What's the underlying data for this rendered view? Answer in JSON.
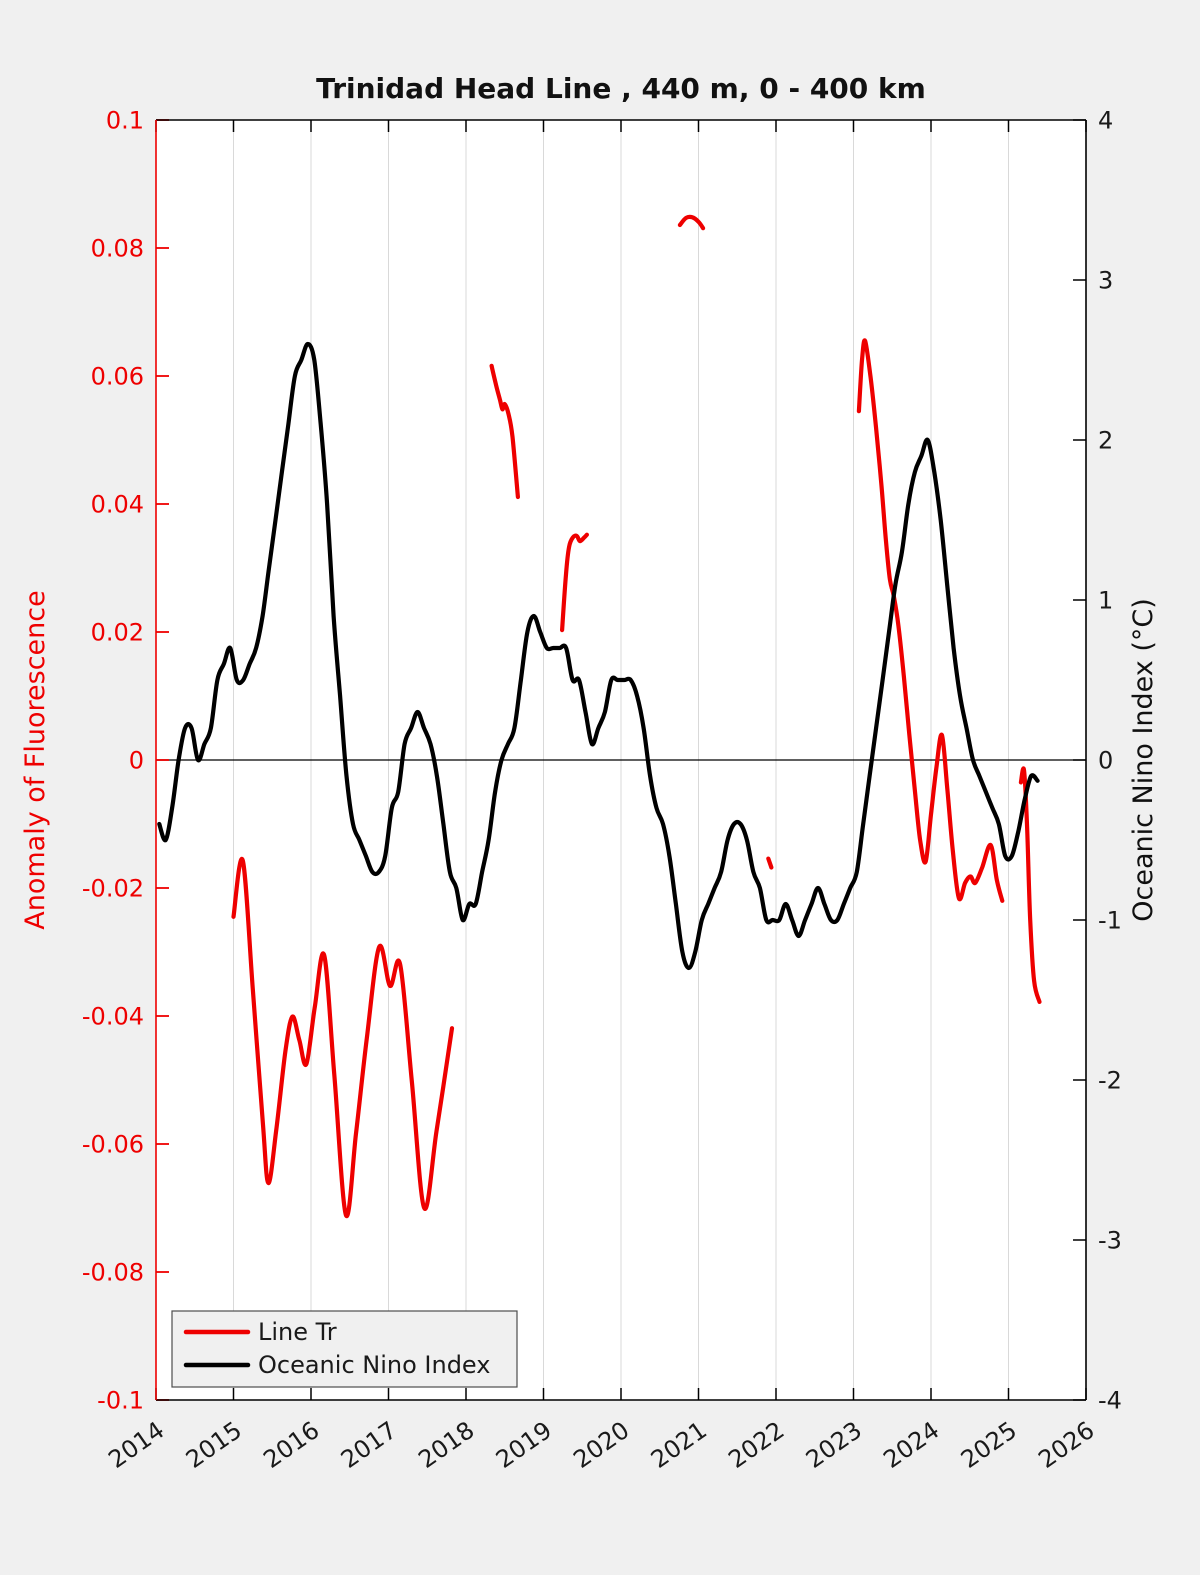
{
  "chart_data": {
    "type": "line",
    "title": "Trinidad Head Line , 440 m, 0 - 400 km",
    "grid": "vertical",
    "grid_color": "#d9d9d9",
    "background_color": "#f0f0f0",
    "plot_background_color": "#ffffff",
    "zero_line": true,
    "x_axis": {
      "label": "",
      "range": [
        2014,
        2026
      ],
      "ticks": [
        2014,
        2015,
        2016,
        2017,
        2018,
        2019,
        2020,
        2021,
        2022,
        2023,
        2024,
        2025,
        2026
      ],
      "tick_labels": [
        "2014",
        "2015",
        "2016",
        "2017",
        "2018",
        "2019",
        "2020",
        "2021",
        "2022",
        "2023",
        "2024",
        "2025",
        "2026"
      ],
      "tick_rotation_deg": -35,
      "color": "#1a1a1a"
    },
    "y_left": {
      "label": "Anomaly of Fluorescence",
      "range": [
        -0.1,
        0.1
      ],
      "ticks": [
        0.1,
        0.08,
        0.06,
        0.04,
        0.02,
        0,
        -0.02,
        -0.04,
        -0.06,
        -0.08,
        -0.1
      ],
      "tick_labels": [
        "0.1",
        "0.08",
        "0.06",
        "0.04",
        "0.02",
        "0",
        "-0.02",
        "-0.04",
        "-0.06",
        "-0.08",
        "-0.1"
      ],
      "color": "#ee0000"
    },
    "y_right": {
      "label": "Oceanic Nino Index (°C)",
      "range": [
        -4,
        4
      ],
      "ticks": [
        4,
        3,
        2,
        1,
        0,
        -1,
        -2,
        -3,
        -4
      ],
      "tick_labels": [
        "4",
        "3",
        "2",
        "1",
        "0",
        "-1",
        "-2",
        "-3",
        "-4"
      ],
      "color": "#000000"
    },
    "legend": {
      "position": "lower-left",
      "entries": [
        {
          "label": "Line Tr",
          "color": "#ee0000"
        },
        {
          "label": "Oceanic Nino Index",
          "color": "#000000"
        }
      ]
    },
    "series": [
      {
        "name": "Line Tr",
        "axis": "left",
        "color": "#ee0000",
        "segments": [
          [
            [
              2015.0,
              -0.0245
            ],
            [
              2015.12,
              -0.0157
            ],
            [
              2015.25,
              -0.036
            ],
            [
              2015.38,
              -0.057
            ],
            [
              2015.45,
              -0.0661
            ],
            [
              2015.55,
              -0.058
            ],
            [
              2015.67,
              -0.0455
            ],
            [
              2015.76,
              -0.0401
            ],
            [
              2015.85,
              -0.0438
            ],
            [
              2015.94,
              -0.0475
            ],
            [
              2016.05,
              -0.0385
            ],
            [
              2016.17,
              -0.0305
            ],
            [
              2016.3,
              -0.049
            ],
            [
              2016.45,
              -0.0711
            ],
            [
              2016.58,
              -0.0585
            ],
            [
              2016.72,
              -0.0435
            ],
            [
              2016.88,
              -0.0292
            ],
            [
              2017.02,
              -0.0353
            ],
            [
              2017.15,
              -0.0319
            ],
            [
              2017.3,
              -0.05
            ],
            [
              2017.46,
              -0.07
            ],
            [
              2017.62,
              -0.058
            ],
            [
              2017.82,
              -0.0419
            ]
          ],
          [
            [
              2018.33,
              0.0616
            ],
            [
              2018.39,
              0.0585
            ],
            [
              2018.44,
              0.0562
            ],
            [
              2018.47,
              0.0548
            ],
            [
              2018.5,
              0.0556
            ],
            [
              2018.55,
              0.054
            ],
            [
              2018.6,
              0.0505
            ],
            [
              2018.67,
              0.0411
            ]
          ],
          [
            [
              2019.24,
              0.0203
            ],
            [
              2019.29,
              0.029
            ],
            [
              2019.33,
              0.0333
            ],
            [
              2019.38,
              0.0348
            ],
            [
              2019.43,
              0.035
            ],
            [
              2019.47,
              0.0342
            ],
            [
              2019.52,
              0.0347
            ],
            [
              2019.56,
              0.0352
            ]
          ],
          [
            [
              2020.76,
              0.0836
            ],
            [
              2020.84,
              0.0847
            ],
            [
              2020.92,
              0.0848
            ],
            [
              2021.0,
              0.0841
            ],
            [
              2021.06,
              0.0831
            ]
          ],
          [
            [
              2021.9,
              -0.0154
            ],
            [
              2021.94,
              -0.0168
            ]
          ],
          [
            [
              2023.07,
              0.0545
            ],
            [
              2023.11,
              0.0625
            ],
            [
              2023.15,
              0.0655
            ],
            [
              2023.22,
              0.0598
            ],
            [
              2023.29,
              0.052
            ],
            [
              2023.36,
              0.043
            ],
            [
              2023.42,
              0.034
            ],
            [
              2023.47,
              0.0282
            ],
            [
              2023.52,
              0.0256
            ],
            [
              2023.58,
              0.021
            ],
            [
              2023.65,
              0.013
            ],
            [
              2023.72,
              0.004
            ],
            [
              2023.79,
              -0.0045
            ],
            [
              2023.86,
              -0.0125
            ],
            [
              2023.93,
              -0.0159
            ],
            [
              2024.0,
              -0.0085
            ],
            [
              2024.07,
              -0.0012
            ],
            [
              2024.14,
              0.0039
            ],
            [
              2024.21,
              -0.0045
            ],
            [
              2024.28,
              -0.014
            ],
            [
              2024.36,
              -0.0216
            ],
            [
              2024.44,
              -0.0192
            ],
            [
              2024.51,
              -0.0182
            ],
            [
              2024.57,
              -0.0192
            ],
            [
              2024.66,
              -0.0168
            ],
            [
              2024.77,
              -0.0133
            ],
            [
              2024.85,
              -0.0188
            ],
            [
              2024.92,
              -0.022
            ]
          ],
          [
            [
              2025.16,
              -0.0035
            ],
            [
              2025.2,
              -0.0016
            ],
            [
              2025.24,
              -0.0105
            ],
            [
              2025.28,
              -0.025
            ],
            [
              2025.33,
              -0.0345
            ],
            [
              2025.4,
              -0.0378
            ]
          ]
        ]
      },
      {
        "name": "Oceanic Nino Index",
        "axis": "right",
        "color": "#000000",
        "segments": [
          [
            [
              2014.042,
              -0.4
            ],
            [
              2014.125,
              -0.5
            ],
            [
              2014.208,
              -0.3
            ],
            [
              2014.292,
              0.0
            ],
            [
              2014.375,
              0.2
            ],
            [
              2014.458,
              0.2
            ],
            [
              2014.542,
              0.0
            ],
            [
              2014.625,
              0.1
            ],
            [
              2014.708,
              0.2
            ],
            [
              2014.792,
              0.5
            ],
            [
              2014.875,
              0.6
            ],
            [
              2014.958,
              0.7
            ],
            [
              2015.042,
              0.5
            ],
            [
              2015.125,
              0.5
            ],
            [
              2015.208,
              0.6
            ],
            [
              2015.292,
              0.7
            ],
            [
              2015.375,
              0.9
            ],
            [
              2015.458,
              1.2
            ],
            [
              2015.542,
              1.5
            ],
            [
              2015.625,
              1.8
            ],
            [
              2015.708,
              2.1
            ],
            [
              2015.792,
              2.4
            ],
            [
              2015.875,
              2.5
            ],
            [
              2015.958,
              2.6
            ],
            [
              2016.042,
              2.5
            ],
            [
              2016.125,
              2.1
            ],
            [
              2016.208,
              1.6
            ],
            [
              2016.292,
              0.9
            ],
            [
              2016.375,
              0.4
            ],
            [
              2016.458,
              -0.1
            ],
            [
              2016.542,
              -0.4
            ],
            [
              2016.625,
              -0.5
            ],
            [
              2016.708,
              -0.6
            ],
            [
              2016.792,
              -0.7
            ],
            [
              2016.875,
              -0.7
            ],
            [
              2016.958,
              -0.6
            ],
            [
              2017.042,
              -0.3
            ],
            [
              2017.125,
              -0.2
            ],
            [
              2017.208,
              0.1
            ],
            [
              2017.292,
              0.2
            ],
            [
              2017.375,
              0.3
            ],
            [
              2017.458,
              0.2
            ],
            [
              2017.542,
              0.1
            ],
            [
              2017.625,
              -0.1
            ],
            [
              2017.708,
              -0.4
            ],
            [
              2017.792,
              -0.7
            ],
            [
              2017.875,
              -0.8
            ],
            [
              2017.958,
              -1.0
            ],
            [
              2018.042,
              -0.9
            ],
            [
              2018.125,
              -0.9
            ],
            [
              2018.208,
              -0.7
            ],
            [
              2018.292,
              -0.5
            ],
            [
              2018.375,
              -0.2
            ],
            [
              2018.458,
              0.0
            ],
            [
              2018.542,
              0.1
            ],
            [
              2018.625,
              0.2
            ],
            [
              2018.708,
              0.5
            ],
            [
              2018.792,
              0.8
            ],
            [
              2018.875,
              0.9
            ],
            [
              2018.958,
              0.8
            ],
            [
              2019.042,
              0.7
            ],
            [
              2019.125,
              0.7
            ],
            [
              2019.208,
              0.7
            ],
            [
              2019.292,
              0.7
            ],
            [
              2019.375,
              0.5
            ],
            [
              2019.458,
              0.5
            ],
            [
              2019.542,
              0.3
            ],
            [
              2019.625,
              0.1
            ],
            [
              2019.708,
              0.2
            ],
            [
              2019.792,
              0.3
            ],
            [
              2019.875,
              0.5
            ],
            [
              2019.958,
              0.5
            ],
            [
              2020.042,
              0.5
            ],
            [
              2020.125,
              0.5
            ],
            [
              2020.208,
              0.4
            ],
            [
              2020.292,
              0.2
            ],
            [
              2020.375,
              -0.1
            ],
            [
              2020.458,
              -0.3
            ],
            [
              2020.542,
              -0.4
            ],
            [
              2020.625,
              -0.6
            ],
            [
              2020.708,
              -0.9
            ],
            [
              2020.792,
              -1.2
            ],
            [
              2020.875,
              -1.3
            ],
            [
              2020.958,
              -1.2
            ],
            [
              2021.042,
              -1.0
            ],
            [
              2021.125,
              -0.9
            ],
            [
              2021.208,
              -0.8
            ],
            [
              2021.292,
              -0.7
            ],
            [
              2021.375,
              -0.5
            ],
            [
              2021.458,
              -0.4
            ],
            [
              2021.542,
              -0.4
            ],
            [
              2021.625,
              -0.5
            ],
            [
              2021.708,
              -0.7
            ],
            [
              2021.792,
              -0.8
            ],
            [
              2021.875,
              -1.0
            ],
            [
              2021.958,
              -1.0
            ],
            [
              2022.042,
              -1.0
            ],
            [
              2022.125,
              -0.9
            ],
            [
              2022.208,
              -1.0
            ],
            [
              2022.292,
              -1.1
            ],
            [
              2022.375,
              -1.0
            ],
            [
              2022.458,
              -0.9
            ],
            [
              2022.542,
              -0.8
            ],
            [
              2022.625,
              -0.9
            ],
            [
              2022.708,
              -1.0
            ],
            [
              2022.792,
              -1.0
            ],
            [
              2022.875,
              -0.9
            ],
            [
              2022.958,
              -0.8
            ],
            [
              2023.042,
              -0.7
            ],
            [
              2023.125,
              -0.4
            ],
            [
              2023.208,
              -0.1
            ],
            [
              2023.292,
              0.2
            ],
            [
              2023.375,
              0.5
            ],
            [
              2023.458,
              0.8
            ],
            [
              2023.542,
              1.1
            ],
            [
              2023.625,
              1.3
            ],
            [
              2023.708,
              1.6
            ],
            [
              2023.792,
              1.8
            ],
            [
              2023.875,
              1.9
            ],
            [
              2023.958,
              2.0
            ],
            [
              2024.042,
              1.8
            ],
            [
              2024.125,
              1.5
            ],
            [
              2024.208,
              1.1
            ],
            [
              2024.292,
              0.7
            ],
            [
              2024.375,
              0.4
            ],
            [
              2024.458,
              0.2
            ],
            [
              2024.542,
              0.0
            ],
            [
              2024.625,
              -0.1
            ],
            [
              2024.708,
              -0.2
            ],
            [
              2024.792,
              -0.3
            ],
            [
              2024.875,
              -0.4
            ],
            [
              2024.958,
              -0.6
            ],
            [
              2025.042,
              -0.6
            ],
            [
              2025.125,
              -0.45
            ],
            [
              2025.208,
              -0.25
            ],
            [
              2025.292,
              -0.1
            ],
            [
              2025.375,
              -0.13
            ]
          ]
        ]
      }
    ]
  }
}
